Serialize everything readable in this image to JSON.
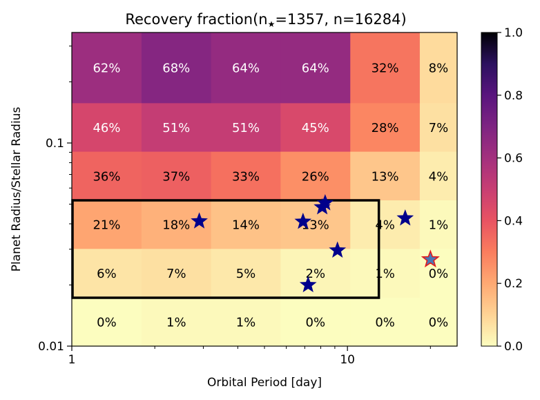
{
  "chart_data": {
    "type": "heatmap",
    "title_parts": [
      "Recovery fraction(n",
      "★",
      "=1357, n=16284)"
    ],
    "xlabel": "Orbital Period [day]",
    "ylabel": "Planet Radius/Stellar Radius",
    "x_scale": "log",
    "y_scale": "log",
    "xlim": [
      1,
      25
    ],
    "ylim": [
      0.01,
      0.35
    ],
    "x_edges": [
      1.0,
      1.79,
      3.2,
      5.72,
      10.24,
      18.3,
      25.0
    ],
    "y_edges": [
      0.01,
      0.0173,
      0.0301,
      0.0522,
      0.0906,
      0.157,
      0.35
    ],
    "x_tick_labels": [
      {
        "value": 1,
        "label": "1"
      },
      {
        "value": 10,
        "label": "10"
      }
    ],
    "y_tick_labels": [
      {
        "value": 0.01,
        "label": "0.01"
      },
      {
        "value": 0.1,
        "label": "0.1"
      }
    ],
    "cells_top_to_bottom": [
      [
        "62%",
        "68%",
        "64%",
        "64%",
        "32%",
        "8%"
      ],
      [
        "46%",
        "51%",
        "51%",
        "45%",
        "28%",
        "7%"
      ],
      [
        "36%",
        "37%",
        "33%",
        "26%",
        "13%",
        "4%"
      ],
      [
        "21%",
        "18%",
        "14%",
        "13%",
        "4%",
        "1%"
      ],
      [
        "6%",
        "7%",
        "5%",
        "2%",
        "1%",
        "0%"
      ],
      [
        "0%",
        "1%",
        "1%",
        "0%",
        "0%",
        "0%"
      ]
    ],
    "values_top_to_bottom": [
      [
        0.62,
        0.68,
        0.64,
        0.64,
        0.32,
        0.08
      ],
      [
        0.46,
        0.51,
        0.51,
        0.45,
        0.28,
        0.07
      ],
      [
        0.36,
        0.37,
        0.33,
        0.26,
        0.13,
        0.04
      ],
      [
        0.21,
        0.18,
        0.14,
        0.13,
        0.04,
        0.01
      ],
      [
        0.06,
        0.07,
        0.05,
        0.02,
        0.01,
        0.0
      ],
      [
        0.0,
        0.01,
        0.01,
        0.0,
        0.0,
        0.0
      ]
    ],
    "colorbar": {
      "colormap": "magma_r",
      "range": [
        0,
        1
      ],
      "ticks": [
        {
          "value": 0.0,
          "label": "0.0"
        },
        {
          "value": 0.2,
          "label": "0.2"
        },
        {
          "value": 0.4,
          "label": "0.4"
        },
        {
          "value": 0.6,
          "label": "0.6"
        },
        {
          "value": 0.8,
          "label": "0.8"
        },
        {
          "value": 1.0,
          "label": "1.0"
        }
      ]
    },
    "box": {
      "x0": 1.0,
      "x1": 13.0,
      "y0": 0.0173,
      "y1": 0.0522
    },
    "stars": [
      {
        "period": 2.9,
        "radius": 0.0412,
        "color": "#00008b"
      },
      {
        "period": 6.9,
        "radius": 0.041,
        "color": "#00008b"
      },
      {
        "period": 8.1,
        "radius": 0.0483,
        "color": "#00008b"
      },
      {
        "period": 8.3,
        "radius": 0.0506,
        "color": "#00008b"
      },
      {
        "period": 9.2,
        "radius": 0.0296,
        "color": "#00008b"
      },
      {
        "period": 7.2,
        "radius": 0.02,
        "color": "#00008b"
      },
      {
        "period": 16.2,
        "radius": 0.0426,
        "color": "#00008b"
      },
      {
        "period": 20.0,
        "radius": 0.0267,
        "color": "#4a78b5",
        "edge": "#e31a1c"
      }
    ]
  }
}
